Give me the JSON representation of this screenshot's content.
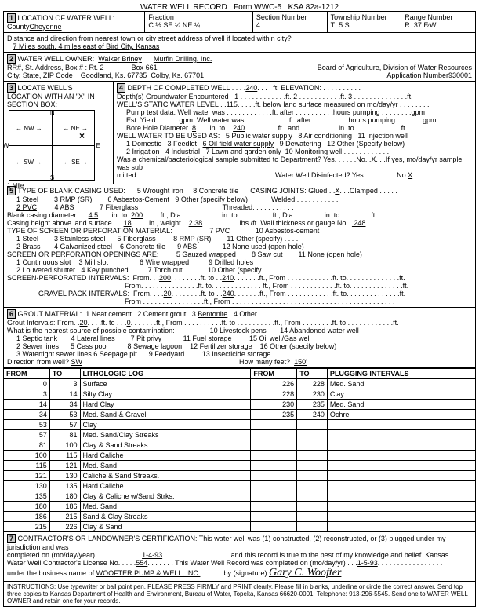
{
  "header": {
    "title": "WATER WELL RECORD",
    "form": "Form WWC-5",
    "ksa": "KSA 82a-1212"
  },
  "loc": {
    "county": "Cheyenne",
    "fraction": "C ½   SE ¼  NE ¼",
    "section": "4",
    "township": "5  S",
    "range": "37 E⁄W",
    "dist": "7 Miles south, 4 miles east of Bird City, Kansas"
  },
  "owner": {
    "name": "Walker Briney",
    "driller": "Murfin Drilling, Inc.",
    "addr": "Rt. 2",
    "box": "Box 661",
    "city1": "Goodland, Ks. 67735",
    "city2": "Colby, Ks. 67701",
    "board": "Board of Agriculture, Division of Water Resources",
    "appnum": "930001"
  },
  "depth": {
    "completed": "240",
    "swl": "115",
    "borediam": "8",
    "boreto": "240"
  },
  "casing": {
    "diam": "4.5",
    "to": "200",
    "height": "18",
    "wt": "2.38",
    "gauge": ".248"
  },
  "screen": {
    "from1": "200",
    "to1": "240",
    "gfrom": "20",
    "gto": "240"
  },
  "grout": {
    "from": "20",
    "to": "0",
    "type": "Bentonite"
  },
  "source": {
    "dir": "SW",
    "feet": "150'",
    "near": "Oil well/Gas well"
  },
  "log": {
    "cols": [
      "FROM",
      "TO",
      "LITHOLOGIC LOG",
      "FROM",
      "TO",
      "PLUGGING INTERVALS"
    ],
    "rows": [
      [
        "0",
        "3",
        "Surface",
        "226",
        "228",
        "Med. Sand"
      ],
      [
        "3",
        "14",
        "Silty Clay",
        "228",
        "230",
        "Clay"
      ],
      [
        "14",
        "34",
        "Hard Clay",
        "230",
        "235",
        "Med. Sand"
      ],
      [
        "34",
        "53",
        "Med. Sand & Gravel",
        "235",
        "240",
        "Ochre"
      ],
      [
        "53",
        "57",
        "Clay",
        "",
        "",
        ""
      ],
      [
        "57",
        "81",
        "Med. Sand/Clay Streaks",
        "",
        "",
        ""
      ],
      [
        "81",
        "100",
        "Clay & Sand Streaks",
        "",
        "",
        ""
      ],
      [
        "100",
        "115",
        "Hard Caliche",
        "",
        "",
        ""
      ],
      [
        "115",
        "121",
        "Med. Sand",
        "",
        "",
        ""
      ],
      [
        "121",
        "130",
        "Caliche & Sand Streaks.",
        "",
        "",
        ""
      ],
      [
        "130",
        "135",
        "Hard Caliche",
        "",
        "",
        ""
      ],
      [
        "135",
        "180",
        "Clay & Caliche w/Sand Strks.",
        "",
        "",
        ""
      ],
      [
        "180",
        "186",
        "Med. Sand",
        "",
        "",
        ""
      ],
      [
        "186",
        "215",
        "Sand & Clay Streaks",
        "",
        "",
        ""
      ],
      [
        "215",
        "226",
        "Clay & Sand",
        "",
        "",
        ""
      ]
    ]
  },
  "cert": {
    "date1": "1-4-93",
    "lic": "554",
    "date2": "1-5-93",
    "biz": "WOOFTER PUMP & WELL, INC.",
    "sig": "Gary C. Woofter"
  },
  "footer": "INSTRUCTIONS: Use typewriter or ball point pen. PLEASE PRESS FIRMLY and PRINT clearly. Please fill in blanks, underline or circle the correct answer. Send top three copies to Kansas Department of Health and Environment, Bureau of Water, Topeka, Kansas 66620-0001. Telephone: 913-296-5545. Send one to WATER WELL OWNER and retain one for your records."
}
